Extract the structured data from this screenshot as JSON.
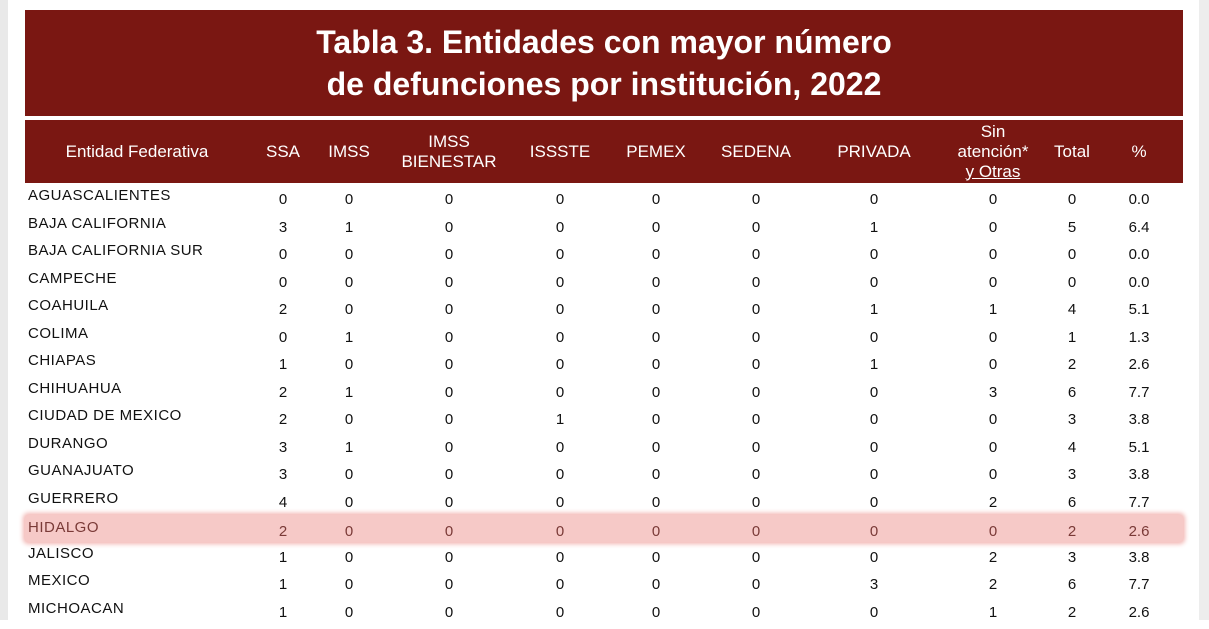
{
  "title": {
    "line1": "Tabla 3. Entidades con mayor número",
    "line2": "de defunciones por institución, 2022"
  },
  "colors": {
    "header_bg": "#7a1712",
    "highlight_bg": "#f6c9c7"
  },
  "columns": [
    [
      "Entidad Federativa"
    ],
    [
      "SSA"
    ],
    [
      "IMSS"
    ],
    [
      "IMSS",
      "BIENESTAR"
    ],
    [
      "ISSSTE"
    ],
    [
      "PEMEX"
    ],
    [
      "SEDENA"
    ],
    [
      "PRIVADA"
    ],
    [
      "Sin",
      "atención*",
      "y Otras"
    ],
    [
      "Total"
    ],
    [
      "%"
    ]
  ],
  "highlighted_row": "HIDALGO",
  "rows": [
    [
      "AGUASCALIENTES",
      "0",
      "0",
      "0",
      "0",
      "0",
      "0",
      "0",
      "0",
      "0",
      "0.0"
    ],
    [
      "BAJA CALIFORNIA",
      "3",
      "1",
      "0",
      "0",
      "0",
      "0",
      "1",
      "0",
      "5",
      "6.4"
    ],
    [
      "BAJA CALIFORNIA SUR",
      "0",
      "0",
      "0",
      "0",
      "0",
      "0",
      "0",
      "0",
      "0",
      "0.0"
    ],
    [
      "CAMPECHE",
      "0",
      "0",
      "0",
      "0",
      "0",
      "0",
      "0",
      "0",
      "0",
      "0.0"
    ],
    [
      "COAHUILA",
      "2",
      "0",
      "0",
      "0",
      "0",
      "0",
      "1",
      "1",
      "4",
      "5.1"
    ],
    [
      "COLIMA",
      "0",
      "1",
      "0",
      "0",
      "0",
      "0",
      "0",
      "0",
      "1",
      "1.3"
    ],
    [
      "CHIAPAS",
      "1",
      "0",
      "0",
      "0",
      "0",
      "0",
      "1",
      "0",
      "2",
      "2.6"
    ],
    [
      "CHIHUAHUA",
      "2",
      "1",
      "0",
      "0",
      "0",
      "0",
      "0",
      "3",
      "6",
      "7.7"
    ],
    [
      "CIUDAD DE MEXICO",
      "2",
      "0",
      "0",
      "1",
      "0",
      "0",
      "0",
      "0",
      "3",
      "3.8"
    ],
    [
      "DURANGO",
      "3",
      "1",
      "0",
      "0",
      "0",
      "0",
      "0",
      "0",
      "4",
      "5.1"
    ],
    [
      "GUANAJUATO",
      "3",
      "0",
      "0",
      "0",
      "0",
      "0",
      "0",
      "0",
      "3",
      "3.8"
    ],
    [
      "GUERRERO",
      "4",
      "0",
      "0",
      "0",
      "0",
      "0",
      "0",
      "2",
      "6",
      "7.7"
    ],
    [
      "HIDALGO",
      "2",
      "0",
      "0",
      "0",
      "0",
      "0",
      "0",
      "0",
      "2",
      "2.6"
    ],
    [
      "JALISCO",
      "1",
      "0",
      "0",
      "0",
      "0",
      "0",
      "0",
      "2",
      "3",
      "3.8"
    ],
    [
      "MEXICO",
      "1",
      "0",
      "0",
      "0",
      "0",
      "0",
      "3",
      "2",
      "6",
      "7.7"
    ],
    [
      "MICHOACAN",
      "1",
      "0",
      "0",
      "0",
      "0",
      "0",
      "0",
      "1",
      "2",
      "2.6"
    ]
  ]
}
